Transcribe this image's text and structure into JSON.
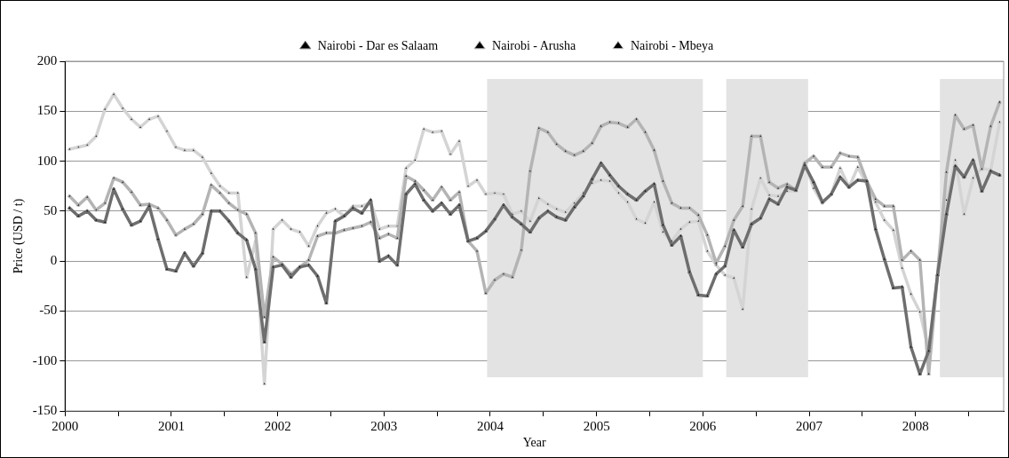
{
  "chart_data": {
    "type": "line",
    "xlabel": "Year",
    "ylabel": "Price (USD / t)",
    "legend": "top",
    "grid": "y",
    "marker": "triangle",
    "line_style": "solid",
    "xlim": [
      2000,
      2008.83
    ],
    "ylim": [
      -150,
      200
    ],
    "xticks": [
      2000,
      {
        "value": 2000.5,
        "label": null
      },
      2001,
      {
        "value": 2001.5,
        "label": null
      },
      2002,
      {
        "value": 2002.5,
        "label": null
      },
      2003,
      {
        "value": 2003.5,
        "label": null
      },
      2004,
      {
        "value": 2004.5,
        "label": null
      },
      2005,
      {
        "value": 2005.5,
        "label": null
      },
      2006,
      {
        "value": 2006.5,
        "label": null
      },
      2007,
      {
        "value": 2007.5,
        "label": null
      },
      2008,
      {
        "value": 2008.5,
        "label": null
      }
    ],
    "yticks": [
      -150,
      -100,
      -50,
      0,
      50,
      100,
      150,
      200
    ],
    "bands": [
      {
        "axis": "x",
        "from": 2003.97,
        "to": 2006.0,
        "color": "#e3e3e3"
      },
      {
        "axis": "x",
        "from": 2006.22,
        "to": 2006.99,
        "color": "#e3e3e3"
      },
      {
        "axis": "x",
        "from": 2008.23,
        "to": 2008.83,
        "color": "#e3e3e3"
      }
    ],
    "x": [
      2000.042,
      2000.125,
      2000.208,
      2000.292,
      2000.375,
      2000.458,
      2000.542,
      2000.625,
      2000.708,
      2000.792,
      2000.875,
      2000.958,
      2001.042,
      2001.125,
      2001.208,
      2001.292,
      2001.375,
      2001.458,
      2001.542,
      2001.625,
      2001.708,
      2001.792,
      2001.875,
      2001.958,
      2002.042,
      2002.125,
      2002.208,
      2002.292,
      2002.375,
      2002.458,
      2002.542,
      2002.625,
      2002.708,
      2002.792,
      2002.875,
      2002.958,
      2003.042,
      2003.125,
      2003.208,
      2003.292,
      2003.375,
      2003.458,
      2003.542,
      2003.625,
      2003.708,
      2003.792,
      2003.875,
      2003.958,
      2004.042,
      2004.125,
      2004.208,
      2004.292,
      2004.375,
      2004.458,
      2004.542,
      2004.625,
      2004.708,
      2004.792,
      2004.875,
      2004.958,
      2005.042,
      2005.125,
      2005.208,
      2005.292,
      2005.375,
      2005.458,
      2005.542,
      2005.625,
      2005.708,
      2005.792,
      2005.875,
      2005.958,
      2006.042,
      2006.125,
      2006.208,
      2006.292,
      2006.375,
      2006.458,
      2006.542,
      2006.625,
      2006.708,
      2006.792,
      2006.875,
      2006.958,
      2007.042,
      2007.125,
      2007.208,
      2007.292,
      2007.375,
      2007.458,
      2007.542,
      2007.625,
      2007.708,
      2007.792,
      2007.875,
      2007.958,
      2008.042,
      2008.125,
      2008.208,
      2008.292,
      2008.375,
      2008.458,
      2008.542,
      2008.625,
      2008.708,
      2008.792
    ],
    "series": [
      {
        "name": "Nairobi - Dar es Salaam",
        "color": "#6e6e6e",
        "values": [
          53,
          45,
          50,
          41,
          39,
          72,
          52,
          36,
          40,
          55,
          22,
          -8,
          -10,
          8,
          -5,
          8,
          50,
          50,
          40,
          28,
          21,
          -8,
          -81,
          -6,
          -4,
          -16,
          -6,
          -4,
          -15,
          -42,
          40,
          45,
          53,
          48,
          61,
          0,
          5,
          -4,
          67,
          77,
          61,
          50,
          58,
          47,
          56,
          20,
          23,
          30,
          42,
          56,
          44,
          37,
          29,
          43,
          50,
          44,
          41,
          54,
          65,
          82,
          98,
          86,
          75,
          67,
          61,
          70,
          77,
          36,
          16,
          25,
          -11,
          -34,
          -35,
          -13,
          -5,
          31,
          14,
          37,
          43,
          62,
          57,
          74,
          71,
          96,
          79,
          59,
          67,
          84,
          74,
          81,
          80,
          32,
          2,
          -27,
          -26,
          -86,
          -113,
          -90,
          -14,
          47,
          95,
          84,
          101,
          70,
          90,
          86
        ]
      },
      {
        "name": "Nairobi - Arusha",
        "color": "#b4b4b4",
        "values": [
          65,
          56,
          64,
          51,
          58,
          83,
          79,
          69,
          56,
          57,
          53,
          41,
          26,
          32,
          37,
          47,
          76,
          68,
          58,
          51,
          47,
          28,
          -56,
          4,
          -3,
          -13,
          -6,
          1,
          25,
          28,
          28,
          31,
          33,
          35,
          39,
          23,
          27,
          23,
          85,
          80,
          71,
          61,
          74,
          61,
          69,
          20,
          10,
          -32,
          -19,
          -13,
          -16,
          11,
          90,
          133,
          129,
          117,
          110,
          106,
          110,
          118,
          135,
          139,
          138,
          134,
          142,
          129,
          111,
          80,
          58,
          53,
          53,
          46,
          26,
          -2,
          15,
          41,
          55,
          125,
          125,
          79,
          73,
          77,
          71,
          98,
          105,
          94,
          94,
          108,
          105,
          104,
          80,
          62,
          55,
          55,
          1,
          10,
          1,
          -113,
          -13,
          89,
          146,
          132,
          136,
          92,
          135,
          159
        ]
      },
      {
        "name": "Nairobi - Mbeya",
        "color": "#d4d4d4",
        "values": [
          112,
          114,
          116,
          125,
          152,
          167,
          153,
          142,
          134,
          142,
          145,
          130,
          114,
          111,
          111,
          104,
          88,
          75,
          68,
          68,
          -16,
          20,
          -123,
          32,
          41,
          32,
          29,
          15,
          35,
          48,
          52,
          45,
          55,
          55,
          59,
          32,
          35,
          35,
          93,
          101,
          132,
          129,
          130,
          107,
          120,
          75,
          81,
          67,
          68,
          67,
          47,
          50,
          40,
          63,
          57,
          52,
          49,
          58,
          68,
          78,
          81,
          80,
          68,
          59,
          42,
          38,
          59,
          29,
          20,
          32,
          39,
          40,
          10,
          -4,
          -14,
          -17,
          -48,
          52,
          83,
          66,
          65,
          70,
          70,
          99,
          73,
          58,
          67,
          93,
          74,
          94,
          77,
          59,
          41,
          31,
          -7,
          -33,
          -51,
          -89,
          -14,
          61,
          101,
          47,
          83,
          93,
          91,
          139
        ]
      }
    ]
  }
}
